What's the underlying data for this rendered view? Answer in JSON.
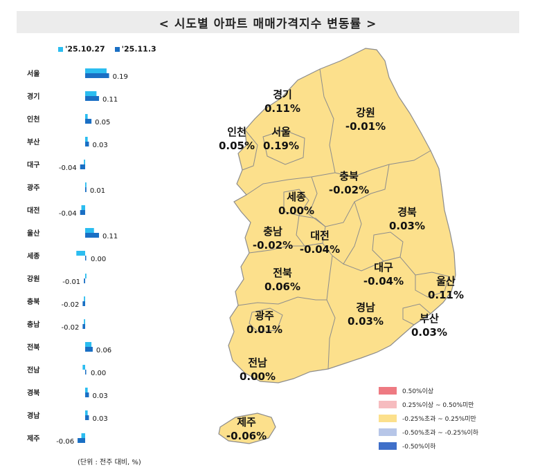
{
  "title": "< 시도별 아파트 매매가격지수 변동률 >",
  "unit_note": "(단위 : 전주 대비, %)",
  "colors": {
    "prev": "#2bbdf0",
    "curr": "#1a6fc4",
    "map_fill": "#fce08c",
    "map_stroke": "#8c8c8c"
  },
  "chart_data": {
    "type": "bar",
    "orientation": "horizontal",
    "categories": [
      "서울",
      "경기",
      "인천",
      "부산",
      "대구",
      "광주",
      "대전",
      "울산",
      "세종",
      "강원",
      "충북",
      "충남",
      "전북",
      "전남",
      "경북",
      "경남",
      "제주"
    ],
    "series": [
      {
        "name": "'25.10.27",
        "values": [
          0.17,
          0.09,
          0.02,
          0.02,
          -0.01,
          0.01,
          -0.03,
          0.07,
          -0.07,
          0.01,
          -0.01,
          -0.01,
          0.05,
          -0.02,
          0.02,
          0.02,
          -0.03
        ]
      },
      {
        "name": "'25.11.3",
        "values": [
          0.19,
          0.11,
          0.05,
          0.03,
          -0.04,
          0.01,
          -0.04,
          0.11,
          0.0,
          -0.01,
          -0.02,
          -0.02,
          0.06,
          0.0,
          0.03,
          0.03,
          -0.06
        ]
      }
    ],
    "value_labels": [
      "0.19",
      "0.11",
      "0.05",
      "0.03",
      "-0.04",
      "0.01",
      "-0.04",
      "0.11",
      "0.00",
      "-0.01",
      "-0.02",
      "-0.02",
      "0.06",
      "0.00",
      "0.03",
      "0.03",
      "-0.06"
    ]
  },
  "map": {
    "regions": [
      {
        "name": "경기",
        "value": "0.11%"
      },
      {
        "name": "강원",
        "value": "-0.01%"
      },
      {
        "name": "인천",
        "value": "0.05%"
      },
      {
        "name": "서울",
        "value": "0.19%"
      },
      {
        "name": "충북",
        "value": "-0.02%"
      },
      {
        "name": "세종",
        "value": "0.00%"
      },
      {
        "name": "경북",
        "value": "0.03%"
      },
      {
        "name": "충남",
        "value": "-0.02%"
      },
      {
        "name": "대전",
        "value": "-0.04%"
      },
      {
        "name": "전북",
        "value": "0.06%"
      },
      {
        "name": "대구",
        "value": "-0.04%"
      },
      {
        "name": "울산",
        "value": "0.11%"
      },
      {
        "name": "광주",
        "value": "0.01%"
      },
      {
        "name": "경남",
        "value": "0.03%"
      },
      {
        "name": "부산",
        "value": "0.03%"
      },
      {
        "name": "전남",
        "value": "0.00%"
      },
      {
        "name": "제주",
        "value": "-0.06%"
      }
    ],
    "legend": [
      {
        "label": "0.50%이상",
        "color": "#ee7a82"
      },
      {
        "label": "0.25%이상 ~ 0.50%미만",
        "color": "#f6bcbf"
      },
      {
        "label": "-0.25%초과 ~ 0.25%미만",
        "color": "#fce08c"
      },
      {
        "label": "-0.50%초과 ~ -0.25%이하",
        "color": "#b7c6e8"
      },
      {
        "label": "-0.50%이하",
        "color": "#3f6fc9"
      }
    ]
  }
}
